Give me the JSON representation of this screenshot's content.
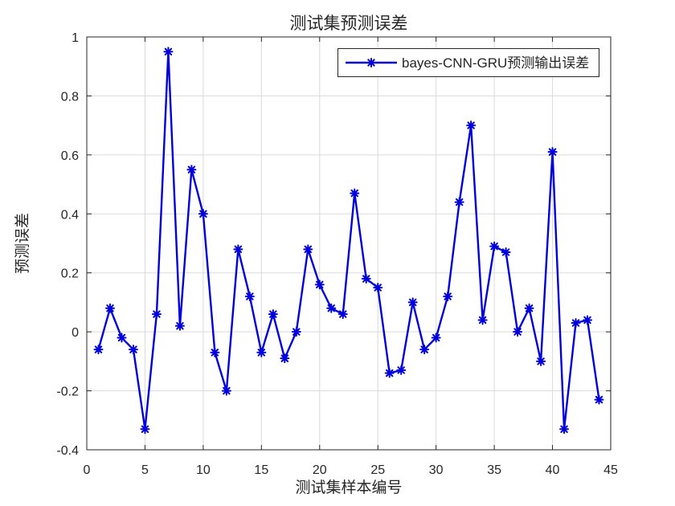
{
  "figure": {
    "background_color": "#ffffff",
    "axis_color": "#262626",
    "grid_color": "#dadada"
  },
  "chart_data": {
    "type": "line",
    "title": "测试集预测误差",
    "xlabel": "测试集样本编号",
    "ylabel": "预测误差",
    "xlim": [
      0,
      45
    ],
    "ylim": [
      -0.4,
      1
    ],
    "grid": true,
    "xticks": [
      0,
      5,
      10,
      15,
      20,
      25,
      30,
      35,
      40,
      45
    ],
    "xtick_labels": [
      "0",
      "5",
      "10",
      "15",
      "20",
      "25",
      "30",
      "35",
      "40",
      "45"
    ],
    "yticks": [
      -0.4,
      -0.2,
      0,
      0.2,
      0.4,
      0.6,
      0.8,
      1
    ],
    "ytick_labels": [
      "-0.4",
      "-0.2",
      "0",
      "0.2",
      "0.4",
      "0.6",
      "0.8",
      "1"
    ],
    "legend": {
      "position": "top-right-inside",
      "border_color": "#262626",
      "background": "#ffffff"
    },
    "series": [
      {
        "name": "bayes-CNN-GRU预测输出误差",
        "color": "#0000dd",
        "marker": "asterisk",
        "line_width": 2.4,
        "x": [
          1,
          2,
          3,
          4,
          5,
          6,
          7,
          8,
          9,
          10,
          11,
          12,
          13,
          14,
          15,
          16,
          17,
          18,
          19,
          20,
          21,
          22,
          23,
          24,
          25,
          26,
          27,
          28,
          29,
          30,
          31,
          32,
          33,
          34,
          35,
          36,
          37,
          38,
          39,
          40,
          41,
          42,
          43,
          44
        ],
        "y": [
          -0.06,
          0.08,
          -0.02,
          -0.06,
          -0.33,
          0.06,
          0.95,
          0.02,
          0.55,
          0.4,
          -0.07,
          -0.2,
          0.28,
          0.12,
          -0.07,
          0.06,
          -0.09,
          0.0,
          0.28,
          0.16,
          0.08,
          0.06,
          0.47,
          0.18,
          0.15,
          -0.14,
          -0.13,
          0.1,
          -0.06,
          -0.02,
          0.12,
          0.44,
          0.7,
          0.04,
          0.29,
          0.27,
          0.0,
          0.08,
          -0.1,
          0.61,
          -0.33,
          0.03,
          0.04,
          -0.23
        ]
      }
    ]
  }
}
